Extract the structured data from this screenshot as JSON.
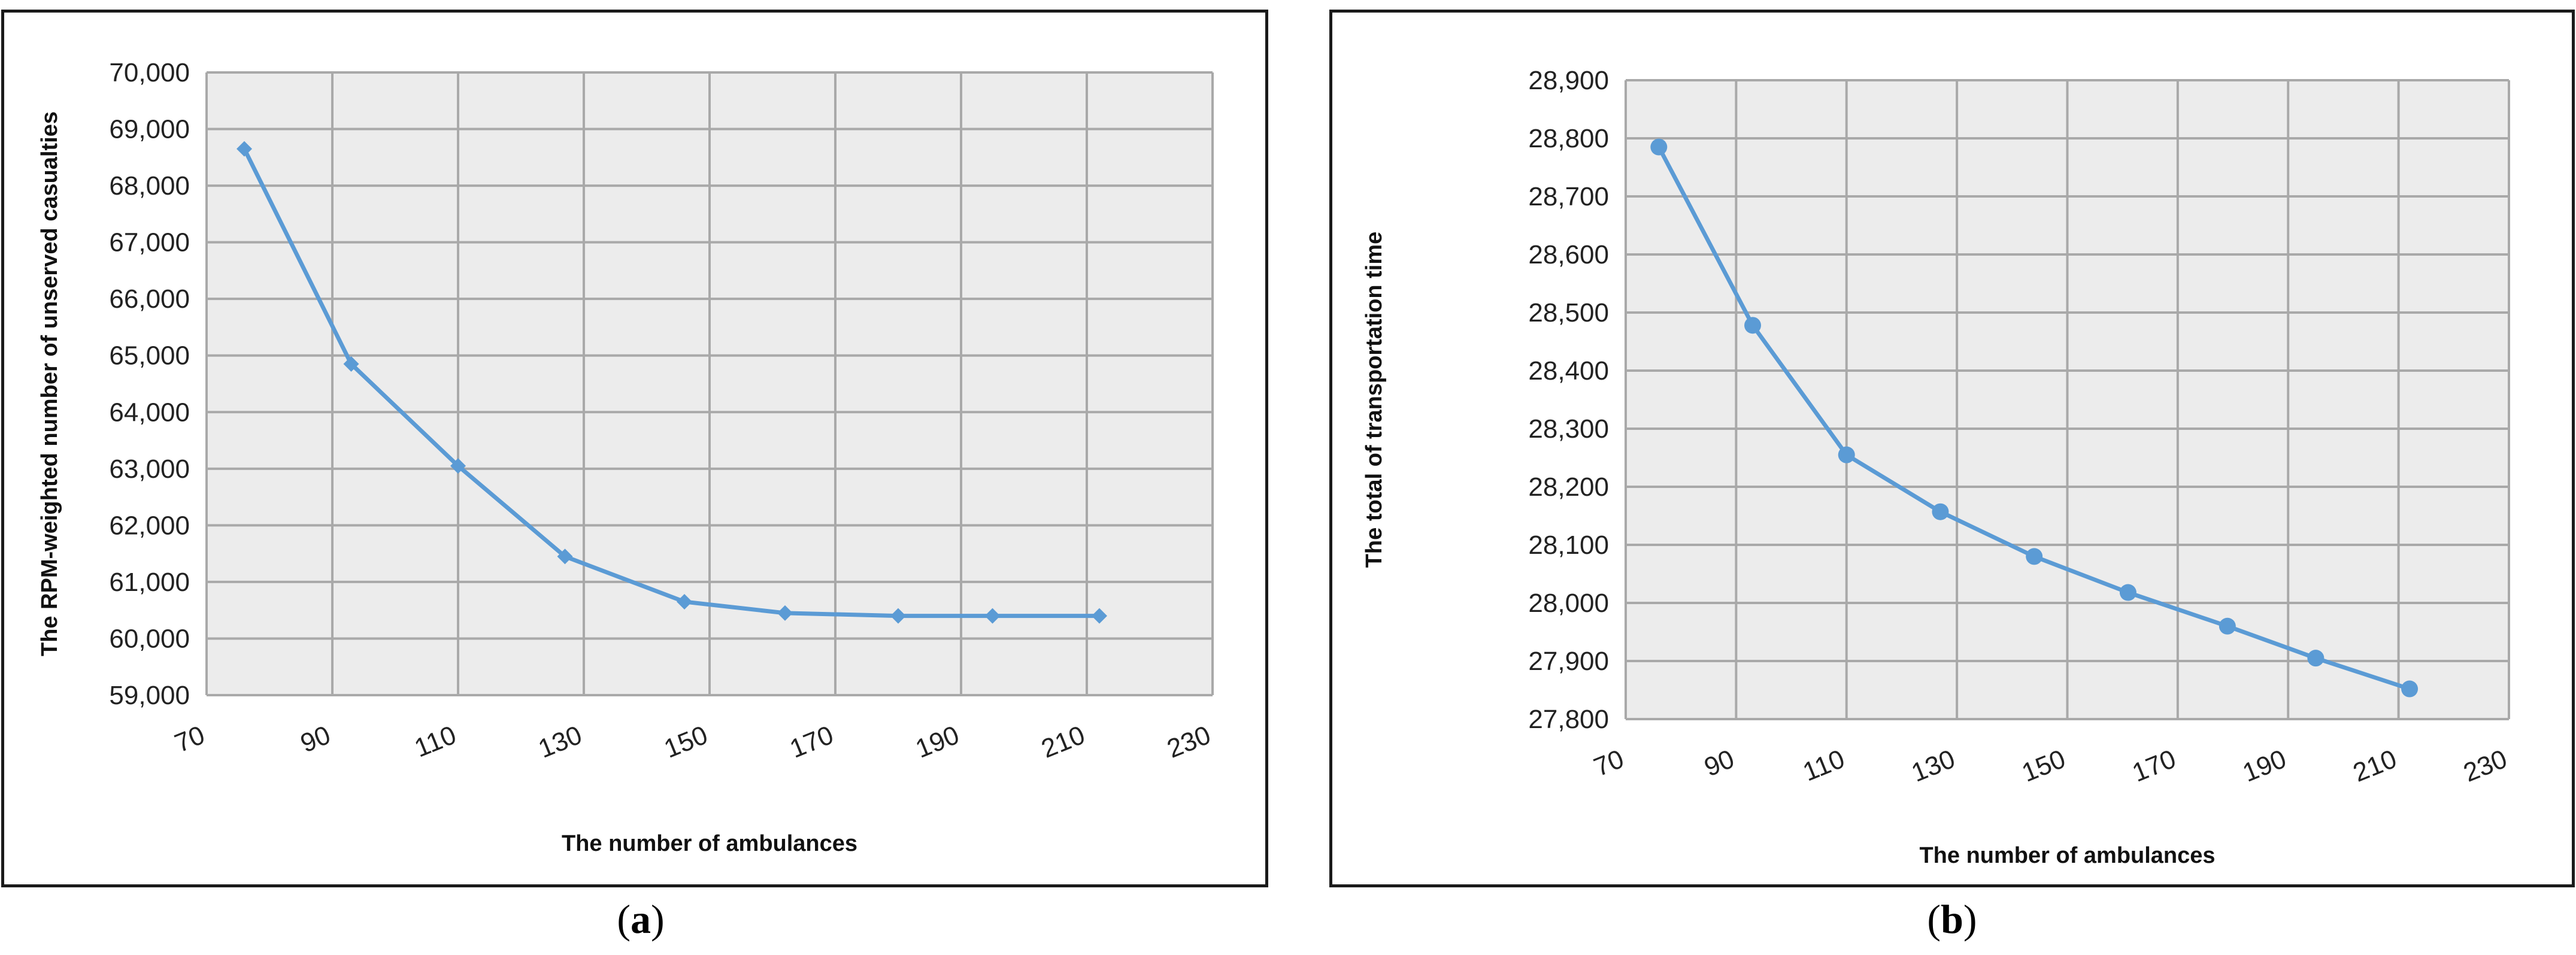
{
  "chart_data": [
    {
      "type": "line",
      "panel_label": "a",
      "xlabel": "The number of ambulances",
      "ylabel": "The RPM-weighted number of unserved casualties",
      "xlim": [
        70,
        230
      ],
      "ylim": [
        59000,
        70000
      ],
      "x_ticks": [
        70,
        90,
        110,
        130,
        150,
        170,
        190,
        210,
        230
      ],
      "y_ticks": [
        59000,
        60000,
        61000,
        62000,
        63000,
        64000,
        65000,
        66000,
        67000,
        68000,
        69000,
        70000
      ],
      "x_tick_labels": [
        "70",
        "90",
        "110",
        "130",
        "150",
        "170",
        "190",
        "210",
        "230"
      ],
      "y_tick_labels": [
        "59,000",
        "60,000",
        "61,000",
        "62,000",
        "63,000",
        "64,000",
        "65,000",
        "66,000",
        "67,000",
        "68,000",
        "69,000",
        "70,000"
      ],
      "grid": true,
      "marker": "diamond",
      "color": "#5b9bd5",
      "x": [
        76,
        93,
        110,
        127,
        146,
        162,
        180,
        195,
        212
      ],
      "y": [
        68650,
        64850,
        63050,
        61450,
        60650,
        60450,
        60400,
        60400,
        60400
      ]
    },
    {
      "type": "line",
      "panel_label": "b",
      "xlabel": "The number of ambulances",
      "ylabel": "The total of transportation time",
      "xlim": [
        70,
        230
      ],
      "ylim": [
        27800,
        28900
      ],
      "x_ticks": [
        70,
        90,
        110,
        130,
        150,
        170,
        190,
        210,
        230
      ],
      "y_ticks": [
        27800,
        27900,
        28000,
        28100,
        28200,
        28300,
        28400,
        28500,
        28600,
        28700,
        28800,
        28900
      ],
      "x_tick_labels": [
        "70",
        "90",
        "110",
        "130",
        "150",
        "170",
        "190",
        "210",
        "230"
      ],
      "y_tick_labels": [
        "27,800",
        "27,900",
        "28,000",
        "28,100",
        "28,200",
        "28,300",
        "28,400",
        "28,500",
        "28,600",
        "28,700",
        "28,800",
        "28,900"
      ],
      "grid": true,
      "marker": "circle",
      "color": "#5b9bd5",
      "x": [
        76,
        93,
        110,
        127,
        144,
        161,
        179,
        195,
        212
      ],
      "y": [
        28785,
        28478,
        28255,
        28157,
        28080,
        28018,
        27960,
        27905,
        27852
      ]
    }
  ]
}
